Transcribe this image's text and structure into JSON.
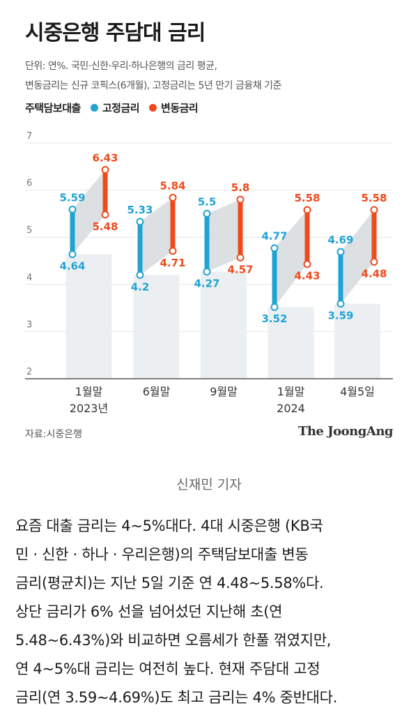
{
  "title": "시중은행 주담대 금리",
  "note_line1": "단위: 연%. 국민·신한·우리·하나은행의 금리 평균,",
  "note_line2": "변동금리는 신규 코픽스(6개월), 고정금리는 5년 만기 금융채 기준",
  "legend": {
    "label": "주택담보대출",
    "fixed": "고정금리",
    "variable": "변동금리"
  },
  "source": "자료:시중은행",
  "brand": "The JoongAng",
  "caption": "신재민 기자",
  "article_lines": [
    "요즘 대출 금리는 4~5%대다. 4대 시중은행 (KB국",
    "민 · 신한 · 하나 · 우리은행)의 주택담보대출 변동",
    "금리(평균치)는 지난 5일 기준 연 4.48~5.58%다.",
    "상단 금리가 6% 선을 넘어섰던 지난해 초(연",
    "5.48~6.43%)와 비교하면 오름세가 한풀 꺾였지만,",
    "연 4~5%대 금리는 여전히 높다. 현재 주담대 고정",
    "금리(연 3.59~4.69%)도 최고 금리는 4% 중반대다."
  ],
  "colors": {
    "fixed": "#1fa3d4",
    "variable": "#ef4a1c",
    "band": "#d7dadd",
    "column": "#eceff1",
    "axis": "#555555"
  },
  "chart_data": {
    "type": "range",
    "categories": [
      "1월말",
      "6월말",
      "9월말",
      "1월말",
      "4월5일"
    ],
    "category_sub": [
      "2023년",
      "",
      "",
      "2024",
      ""
    ],
    "ylim": [
      2,
      7
    ],
    "yticks": [
      2,
      3,
      4,
      5,
      6,
      7
    ],
    "series": [
      {
        "name": "고정금리",
        "low": [
          4.64,
          4.2,
          4.27,
          3.52,
          3.59
        ],
        "high": [
          5.59,
          5.33,
          5.5,
          4.77,
          4.69
        ]
      },
      {
        "name": "변동금리",
        "low": [
          5.48,
          4.71,
          4.57,
          4.43,
          4.48
        ],
        "high": [
          6.43,
          5.84,
          5.8,
          5.58,
          5.58
        ]
      }
    ],
    "value_labels": {
      "fixed_low": [
        "4.64",
        "4.2",
        "4.27",
        "3.52",
        "3.59"
      ],
      "fixed_high": [
        "5.59",
        "5.33",
        "5.5",
        "4.77",
        "4.69"
      ],
      "variable_low": [
        "5.48",
        "4.71",
        "4.57",
        "4.43",
        "4.48"
      ],
      "variable_high": [
        "6.43",
        "5.84",
        "5.8",
        "5.58",
        "5.58"
      ]
    },
    "grid": true,
    "legend_position": "top-left"
  }
}
